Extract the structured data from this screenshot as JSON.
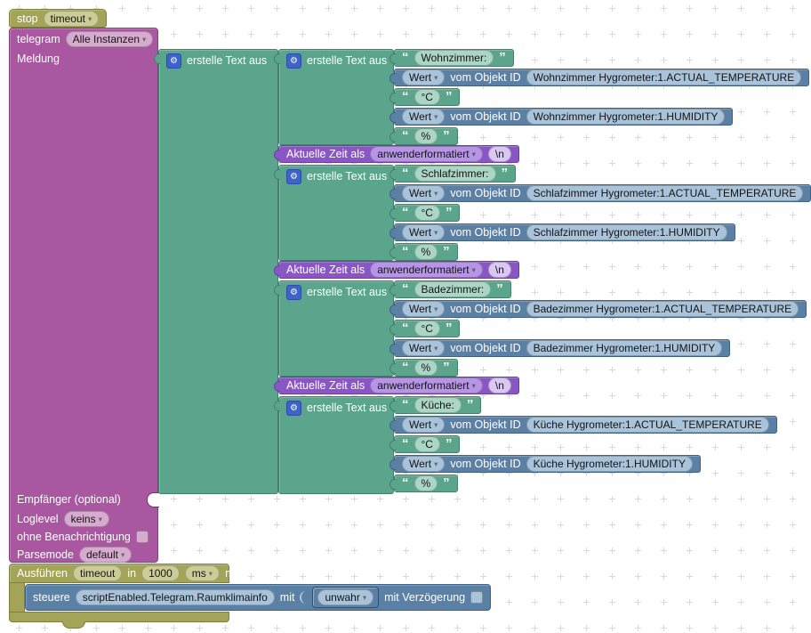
{
  "icons": {
    "gear": "⚙",
    "chevron": "▾",
    "quote_open": "“",
    "quote_close": "”"
  },
  "blocks": {
    "stop": {
      "label": "stop",
      "timer": "timeout"
    },
    "telegram": {
      "label": "telegram",
      "instance": "Alle Instanzen",
      "message_label": "Meldung",
      "recipient_label": "Empfänger (optional)",
      "loglevel_label": "Loglevel",
      "loglevel": "keins",
      "no_notification_label": "ohne Benachrichtigung",
      "parsemode_label": "Parsemode",
      "parsemode": "default"
    },
    "join_label": "erstelle Text aus",
    "wert_label": "Wert",
    "vom_objekt_label": "vom Objekt ID",
    "units": {
      "celsius": "°C",
      "percent": "%"
    },
    "time": {
      "label": "Aktuelle Zeit als",
      "format": "anwenderformatiert",
      "append": "\\n"
    },
    "schedule": {
      "label": "Ausführen",
      "timer": "timeout",
      "in_label": "in",
      "delay": "1000",
      "unit": "ms",
      "suffix": "ms"
    },
    "control": {
      "label": "steuere",
      "oid": "scriptEnabled.Telegram.Raumklimainfo",
      "with_label": "mit",
      "value": "unwahr",
      "delay_label": "mit Verzögerung"
    }
  },
  "sections": [
    {
      "title": "Wohnzimmer:",
      "temp_oid": "Wohnzimmer Hygrometer:1.ACTUAL_TEMPERATURE",
      "hum_oid": "Wohnzimmer Hygrometer:1.HUMIDITY"
    },
    {
      "title": "Schlafzimmer:",
      "temp_oid": "Schlafzimmer Hygrometer:1.ACTUAL_TEMPERATURE",
      "hum_oid": "Schlafzimmer Hygrometer:1.HUMIDITY"
    },
    {
      "title": "Badezimmer:",
      "temp_oid": "Badezimmer Hygrometer:1.ACTUAL_TEMPERATURE",
      "hum_oid": "Badezimmer Hygrometer:1.HUMIDITY"
    },
    {
      "title": "Küche:",
      "temp_oid": "Küche Hygrometer:1.ACTUAL_TEMPERATURE",
      "hum_oid": "Küche Hygrometer:1.HUMIDITY"
    }
  ]
}
